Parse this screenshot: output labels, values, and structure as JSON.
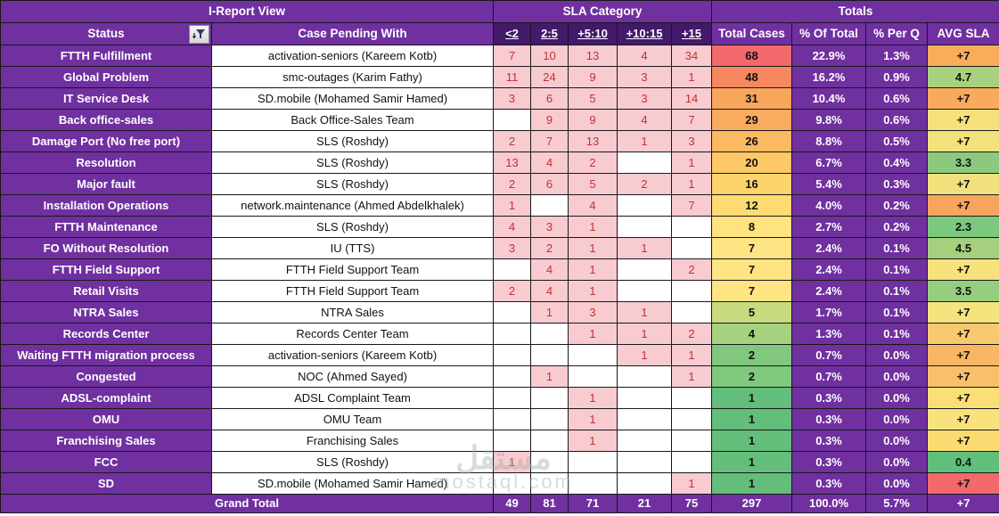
{
  "title_row": {
    "report_view": "I-Report View",
    "sla_category": "SLA Category",
    "totals": "Totals"
  },
  "header": {
    "status": "Status",
    "case_pending": "Case Pending With",
    "filter_icon": "filter-icon",
    "sla_columns": [
      "<2",
      "2:5",
      "+5:10",
      "+10:15",
      "+15"
    ],
    "totals_columns": [
      "Total Cases",
      "% Of Total",
      "% Per Q",
      "AVG SLA"
    ]
  },
  "colors": {
    "purple": "#7030A0",
    "dark_purple_subheader": "#42196B",
    "pink_cell": "#F8CBD1",
    "sla_text_red": "#BE3434"
  },
  "rows": [
    {
      "status": "FTTH Fulfillment",
      "pending": "activation-seniors (Kareem Kotb)",
      "sla": [
        "7",
        "10",
        "13",
        "4",
        "34"
      ],
      "total": "68",
      "pct_total": "22.9%",
      "pct_q": "1.3%",
      "avg_sla": "+7",
      "total_color": "#F4696B",
      "avg_color": "#FBAC5B"
    },
    {
      "status": "Global Problem",
      "pending": "smc-outages (Karim Fathy)",
      "sla": [
        "11",
        "24",
        "9",
        "3",
        "1"
      ],
      "total": "48",
      "pct_total": "16.2%",
      "pct_q": "0.9%",
      "avg_sla": "4.7",
      "total_color": "#F6875F",
      "avg_color": "#A8D07E"
    },
    {
      "status": "IT Service Desk",
      "pending": "SD.mobile (Mohamed Samir Hamed)",
      "sla": [
        "3",
        "6",
        "5",
        "3",
        "14"
      ],
      "total": "31",
      "pct_total": "10.4%",
      "pct_q": "0.6%",
      "avg_sla": "+7",
      "total_color": "#F9A65D",
      "avg_color": "#FAAA5C"
    },
    {
      "status": "Back office-sales",
      "pending": "Back Office-Sales Team",
      "sla": [
        "",
        "9",
        "9",
        "4",
        "7"
      ],
      "total": "29",
      "pct_total": "9.8%",
      "pct_q": "0.6%",
      "avg_sla": "+7",
      "total_color": "#FAAB5F",
      "avg_color": "#F4E17C"
    },
    {
      "status": "Damage Port (No free port)",
      "pending": "SLS (Roshdy)",
      "sla": [
        "2",
        "7",
        "13",
        "1",
        "3"
      ],
      "total": "26",
      "pct_total": "8.8%",
      "pct_q": "0.5%",
      "avg_sla": "+7",
      "total_color": "#FBB962",
      "avg_color": "#F2E27C"
    },
    {
      "status": "Resolution",
      "pending": "SLS (Roshdy)",
      "sla": [
        "13",
        "4",
        "2",
        "",
        "1"
      ],
      "total": "20",
      "pct_total": "6.7%",
      "pct_q": "0.4%",
      "avg_sla": "3.3",
      "total_color": "#FCC966",
      "avg_color": "#8BCA7E"
    },
    {
      "status": "Major fault",
      "pending": "SLS (Roshdy)",
      "sla": [
        "2",
        "6",
        "5",
        "2",
        "1"
      ],
      "total": "16",
      "pct_total": "5.4%",
      "pct_q": "0.3%",
      "avg_sla": "+7",
      "total_color": "#FDD46C",
      "avg_color": "#F1E17D"
    },
    {
      "status": "Installation Operations",
      "pending": "network.maintenance (Ahmed Abdelkhalek)",
      "sla": [
        "1",
        "",
        "4",
        "",
        "7"
      ],
      "total": "12",
      "pct_total": "4.0%",
      "pct_q": "0.2%",
      "avg_sla": "+7",
      "total_color": "#FDDB71",
      "avg_color": "#F7A55C"
    },
    {
      "status": "FTTH Maintenance",
      "pending": "SLS (Roshdy)",
      "sla": [
        "4",
        "3",
        "1",
        "",
        ""
      ],
      "total": "8",
      "pct_total": "2.7%",
      "pct_q": "0.2%",
      "avg_sla": "2.3",
      "total_color": "#FEE380",
      "avg_color": "#7CC87E"
    },
    {
      "status": "FO Without Resolution",
      "pending": "IU (TTS)",
      "sla": [
        "3",
        "2",
        "1",
        "1",
        ""
      ],
      "total": "7",
      "pct_total": "2.4%",
      "pct_q": "0.1%",
      "avg_sla": "4.5",
      "total_color": "#FEE483",
      "avg_color": "#A5D07E"
    },
    {
      "status": "FTTH Field Support",
      "pending": "FTTH Field Support Team",
      "sla": [
        "",
        "4",
        "1",
        "",
        "2"
      ],
      "total": "7",
      "pct_total": "2.4%",
      "pct_q": "0.1%",
      "avg_sla": "+7",
      "total_color": "#FEE483",
      "avg_color": "#F6E17C"
    },
    {
      "status": "Retail Visits",
      "pending": "FTTH Field Support Team",
      "sla": [
        "2",
        "4",
        "1",
        "",
        ""
      ],
      "total": "7",
      "pct_total": "2.4%",
      "pct_q": "0.1%",
      "avg_sla": "3.5",
      "total_color": "#FEE483",
      "avg_color": "#97CD7E"
    },
    {
      "status": "NTRA Sales",
      "pending": "NTRA Sales",
      "sla": [
        "",
        "1",
        "3",
        "1",
        ""
      ],
      "total": "5",
      "pct_total": "1.7%",
      "pct_q": "0.1%",
      "avg_sla": "+7",
      "total_color": "#C8DB80",
      "avg_color": "#F5E37D"
    },
    {
      "status": "Records Center",
      "pending": "Records Center Team",
      "sla": [
        "",
        "",
        "1",
        "1",
        "2"
      ],
      "total": "4",
      "pct_total": "1.3%",
      "pct_q": "0.1%",
      "avg_sla": "+7",
      "total_color": "#A6D27F",
      "avg_color": "#F9C96F"
    },
    {
      "status": "Waiting FTTH migration process",
      "pending": "activation-seniors (Kareem Kotb)",
      "sla": [
        "",
        "",
        "",
        "1",
        "1"
      ],
      "total": "2",
      "pct_total": "0.7%",
      "pct_q": "0.0%",
      "avg_sla": "+7",
      "total_color": "#7FC87D",
      "avg_color": "#F9B464"
    },
    {
      "status": "Congested",
      "pending": "NOC (Ahmed Sayed)",
      "sla": [
        "",
        "1",
        "",
        "",
        "1"
      ],
      "total": "2",
      "pct_total": "0.7%",
      "pct_q": "0.0%",
      "avg_sla": "+7",
      "total_color": "#7FC87D",
      "avg_color": "#F9BF6A"
    },
    {
      "status": "ADSL-complaint",
      "pending": "ADSL Complaint Team",
      "sla": [
        "",
        "",
        "1",
        "",
        ""
      ],
      "total": "1",
      "pct_total": "0.3%",
      "pct_q": "0.0%",
      "avg_sla": "+7",
      "total_color": "#63BE7B",
      "avg_color": "#FADF76"
    },
    {
      "status": "OMU",
      "pending": "OMU Team",
      "sla": [
        "",
        "",
        "1",
        "",
        ""
      ],
      "total": "1",
      "pct_total": "0.3%",
      "pct_q": "0.0%",
      "avg_sla": "+7",
      "total_color": "#63BE7B",
      "avg_color": "#F8E27E"
    },
    {
      "status": "Franchising Sales",
      "pending": "Franchising Sales",
      "sla": [
        "",
        "",
        "1",
        "",
        ""
      ],
      "total": "1",
      "pct_total": "0.3%",
      "pct_q": "0.0%",
      "avg_sla": "+7",
      "total_color": "#63BE7B",
      "avg_color": "#FADB72"
    },
    {
      "status": "FCC",
      "pending": "SLS (Roshdy)",
      "sla": [
        "1",
        "",
        "",
        "",
        ""
      ],
      "total": "1",
      "pct_total": "0.3%",
      "pct_q": "0.0%",
      "avg_sla": "0.4",
      "total_color": "#63BE7B",
      "avg_color": "#5FBF7B"
    },
    {
      "status": "SD",
      "pending": "SD.mobile (Mohamed Samir Hamed)",
      "sla": [
        "",
        "",
        "",
        "",
        "1"
      ],
      "total": "1",
      "pct_total": "0.3%",
      "pct_q": "0.0%",
      "avg_sla": "+7",
      "total_color": "#63BE7B",
      "avg_color": "#F4696B"
    }
  ],
  "grand_total": {
    "label": "Grand Total",
    "sla": [
      "49",
      "81",
      "71",
      "21",
      "75"
    ],
    "total": "297",
    "pct_total": "100.0%",
    "pct_q": "5.7%",
    "avg_sla": "+7"
  },
  "watermark": {
    "arabic": "مستقل",
    "site": "mostaql.com"
  }
}
